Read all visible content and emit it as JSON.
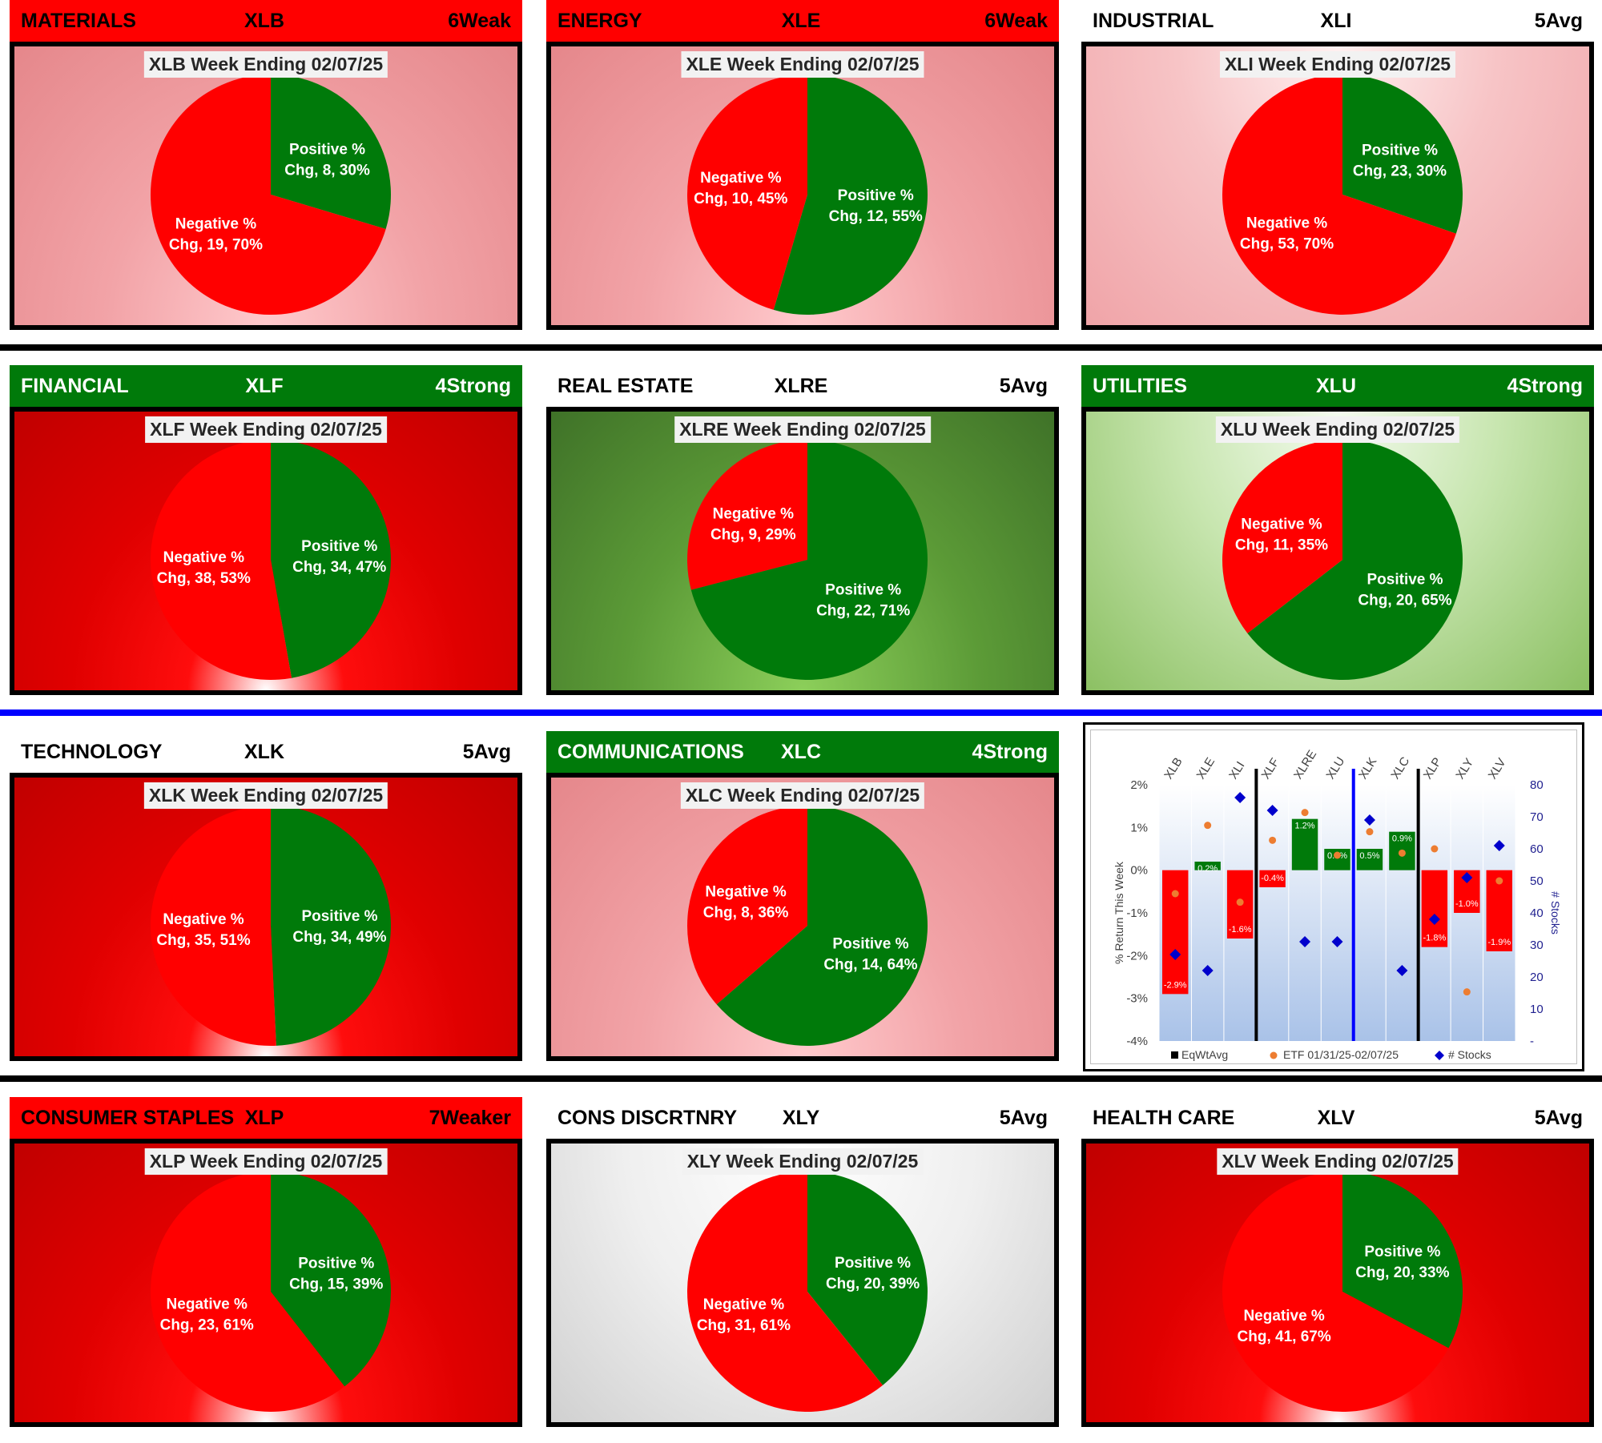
{
  "colors": {
    "negative": "#ff0000",
    "positive": "#007a0a",
    "header_red": "#ff0000",
    "header_green": "#007a0a",
    "etf_dot": "#ed7d31",
    "stocks_diamond": "#0000cc"
  },
  "sectors": [
    {
      "name": "MATERIALS",
      "etf": "XLB",
      "rating": "6Weak",
      "header": "red",
      "bg": "red-light",
      "title": "XLB Week Ending 02/07/25",
      "neg_label": [
        "Negative %",
        "Chg, 19, 70%"
      ],
      "pos_label": [
        "Positive %",
        "Chg, 8, 30%"
      ],
      "neg_count": 19,
      "pos_count": 8,
      "neg_pct": 70,
      "pos_pct": 30
    },
    {
      "name": "ENERGY",
      "etf": "XLE",
      "rating": "6Weak",
      "header": "red",
      "bg": "red-light",
      "title": "XLE Week Ending 02/07/25",
      "neg_label": [
        "Negative %",
        "Chg, 10, 45%"
      ],
      "pos_label": [
        "Positive %",
        "Chg, 12, 55%"
      ],
      "neg_count": 10,
      "pos_count": 12,
      "neg_pct": 45,
      "pos_pct": 55
    },
    {
      "name": "INDUSTRIAL",
      "etf": "XLI",
      "rating": "5Avg",
      "header": "white",
      "bg": "red-light2",
      "title": "XLI Week Ending 02/07/25",
      "neg_label": [
        "Negative %",
        "Chg, 53, 70%"
      ],
      "pos_label": [
        "Positive %",
        "Chg, 23, 30%"
      ],
      "neg_count": 53,
      "pos_count": 23,
      "neg_pct": 70,
      "pos_pct": 30
    },
    {
      "name": "FINANCIAL",
      "etf": "XLF",
      "rating": "4Strong",
      "header": "green",
      "bg": "red-dark",
      "title": "XLF Week Ending 02/07/25",
      "neg_label": [
        "Negative %",
        "Chg, 38, 53%"
      ],
      "pos_label": [
        "Positive %",
        "Chg, 34, 47%"
      ],
      "neg_count": 38,
      "pos_count": 34,
      "neg_pct": 53,
      "pos_pct": 47
    },
    {
      "name": "REAL ESTATE",
      "etf": "XLRE",
      "rating": "5Avg",
      "header": "white",
      "bg": "green-dark",
      "title": "XLRE Week Ending 02/07/25",
      "neg_label": [
        "Negative %",
        "Chg, 9, 29%"
      ],
      "pos_label": [
        "Positive %",
        "Chg, 22, 71%"
      ],
      "neg_count": 9,
      "pos_count": 22,
      "neg_pct": 29,
      "pos_pct": 71
    },
    {
      "name": "UTILITIES",
      "etf": "XLU",
      "rating": "4Strong",
      "header": "green",
      "bg": "green-light",
      "title": "XLU Week Ending 02/07/25",
      "neg_label": [
        "Negative %",
        "Chg, 11, 35%"
      ],
      "pos_label": [
        "Positive %",
        "Chg, 20, 65%"
      ],
      "neg_count": 11,
      "pos_count": 20,
      "neg_pct": 35,
      "pos_pct": 65
    },
    {
      "name": "TECHNOLOGY",
      "etf": "XLK",
      "rating": "5Avg",
      "header": "white",
      "bg": "red-dark",
      "title": "XLK Week Ending 02/07/25",
      "neg_label": [
        "Negative %",
        "Chg, 35, 51%"
      ],
      "pos_label": [
        "Positive %",
        "Chg, 34, 49%"
      ],
      "neg_count": 35,
      "pos_count": 34,
      "neg_pct": 51,
      "pos_pct": 49
    },
    {
      "name": "COMMUNICATIONS",
      "etf": "XLC",
      "rating": "4Strong",
      "header": "green",
      "bg": "red-light",
      "title": "XLC Week Ending 02/07/25",
      "neg_label": [
        "Negative %",
        "Chg, 8, 36%"
      ],
      "pos_label": [
        "Positive %",
        "Chg, 14, 64%"
      ],
      "neg_count": 8,
      "pos_count": 14,
      "neg_pct": 36,
      "pos_pct": 64
    },
    {
      "name": "CONSUMER STAPLES",
      "etf": "XLP",
      "rating": "7Weaker",
      "header": "red",
      "bg": "red-dark",
      "title": "XLP Week Ending 02/07/25",
      "neg_label": [
        "Negative %",
        "Chg, 23, 61%"
      ],
      "pos_label": [
        "Positive %",
        "Chg, 15, 39%"
      ],
      "neg_count": 23,
      "pos_count": 15,
      "neg_pct": 61,
      "pos_pct": 39
    },
    {
      "name": "CONS DISCRTNRY",
      "etf": "XLY",
      "rating": "5Avg",
      "header": "white",
      "bg": "grey",
      "title": "XLY Week Ending 02/07/25",
      "neg_label": [
        "Negative %",
        "Chg, 31, 61%"
      ],
      "pos_label": [
        "Positive %",
        "Chg, 20, 39%"
      ],
      "neg_count": 31,
      "pos_count": 20,
      "neg_pct": 61,
      "pos_pct": 39
    },
    {
      "name": "HEALTH CARE",
      "etf": "XLV",
      "rating": "5Avg",
      "header": "white",
      "bg": "red-dark",
      "title": "XLV Week Ending 02/07/25",
      "neg_label": [
        "Negative %",
        "Chg, 41, 67%"
      ],
      "pos_label": [
        "Positive %",
        "Chg, 20, 33%"
      ],
      "neg_count": 41,
      "pos_count": 20,
      "neg_pct": 67,
      "pos_pct": 33
    }
  ],
  "chart_data": [
    {
      "type": "pie",
      "title": "XLB Week Ending 02/07/25",
      "categories": [
        "Negative % Chg",
        "Positive % Chg"
      ],
      "values": [
        19,
        8
      ],
      "percents": [
        70,
        30
      ]
    },
    {
      "type": "pie",
      "title": "XLE Week Ending 02/07/25",
      "categories": [
        "Negative % Chg",
        "Positive % Chg"
      ],
      "values": [
        10,
        12
      ],
      "percents": [
        45,
        55
      ]
    },
    {
      "type": "pie",
      "title": "XLI Week Ending 02/07/25",
      "categories": [
        "Negative % Chg",
        "Positive % Chg"
      ],
      "values": [
        53,
        23
      ],
      "percents": [
        70,
        30
      ]
    },
    {
      "type": "pie",
      "title": "XLF Week Ending 02/07/25",
      "categories": [
        "Negative % Chg",
        "Positive % Chg"
      ],
      "values": [
        38,
        34
      ],
      "percents": [
        53,
        47
      ]
    },
    {
      "type": "pie",
      "title": "XLRE Week Ending 02/07/25",
      "categories": [
        "Negative % Chg",
        "Positive % Chg"
      ],
      "values": [
        9,
        22
      ],
      "percents": [
        29,
        71
      ]
    },
    {
      "type": "pie",
      "title": "XLU Week Ending 02/07/25",
      "categories": [
        "Negative % Chg",
        "Positive % Chg"
      ],
      "values": [
        11,
        20
      ],
      "percents": [
        35,
        65
      ]
    },
    {
      "type": "pie",
      "title": "XLK Week Ending 02/07/25",
      "categories": [
        "Negative % Chg",
        "Positive % Chg"
      ],
      "values": [
        35,
        34
      ],
      "percents": [
        51,
        49
      ]
    },
    {
      "type": "pie",
      "title": "XLC Week Ending 02/07/25",
      "categories": [
        "Negative % Chg",
        "Positive % Chg"
      ],
      "values": [
        8,
        14
      ],
      "percents": [
        36,
        64
      ]
    },
    {
      "type": "pie",
      "title": "XLP Week Ending 02/07/25",
      "categories": [
        "Negative % Chg",
        "Positive % Chg"
      ],
      "values": [
        23,
        15
      ],
      "percents": [
        61,
        39
      ]
    },
    {
      "type": "pie",
      "title": "XLY Week Ending 02/07/25",
      "categories": [
        "Negative % Chg",
        "Positive % Chg"
      ],
      "values": [
        31,
        20
      ],
      "percents": [
        61,
        39
      ]
    },
    {
      "type": "pie",
      "title": "XLV Week Ending 02/07/25",
      "categories": [
        "Negative % Chg",
        "Positive % Chg"
      ],
      "values": [
        41,
        20
      ],
      "percents": [
        67,
        33
      ]
    },
    {
      "type": "bar",
      "title": "",
      "categories": [
        "XLB",
        "XLE",
        "XLI",
        "XLF",
        "XLRE",
        "XLU",
        "XLK",
        "XLC",
        "XLP",
        "XLY",
        "XLV"
      ],
      "ylabel": "% Return This Week",
      "y2label": "# Stocks",
      "ylim": [
        -4,
        2
      ],
      "y2lim": [
        0,
        80
      ],
      "yticks": [
        "2%",
        "1%",
        "0%",
        "-1%",
        "-2%",
        "-3%",
        "-4%"
      ],
      "y2ticks": [
        "80",
        "70",
        "60",
        "50",
        "40",
        "30",
        "20",
        "10",
        "-"
      ],
      "series": [
        {
          "name": "EqWtAvg",
          "kind": "bar",
          "values": [
            -2.9,
            0.2,
            -1.6,
            -0.4,
            1.2,
            0.5,
            0.5,
            0.9,
            -1.8,
            -1.0,
            -1.9
          ],
          "labels": [
            "-2.9%",
            "0.2%",
            "-1.6%",
            "-0.4%",
            "1.2%",
            "0.5%",
            "0.5%",
            "0.9%",
            "-1.8%",
            "-1.0%",
            "-1.9%"
          ]
        },
        {
          "name": "ETF 01/31/25-02/07/25",
          "kind": "scatter",
          "values": [
            -0.55,
            1.05,
            -0.75,
            0.7,
            1.35,
            0.35,
            0.9,
            0.4,
            0.5,
            -2.85,
            -0.25
          ]
        },
        {
          "name": "# Stocks",
          "kind": "scatter",
          "axis": "y2",
          "values": [
            27,
            22,
            76,
            72,
            31,
            31,
            69,
            22,
            38,
            51,
            61
          ]
        }
      ],
      "dividers": [
        {
          "after": "XLI",
          "color": "#000000"
        },
        {
          "after": "XLU",
          "color": "#0000ff"
        },
        {
          "after": "XLC",
          "color": "#000000"
        }
      ],
      "legend": "bottom"
    }
  ]
}
